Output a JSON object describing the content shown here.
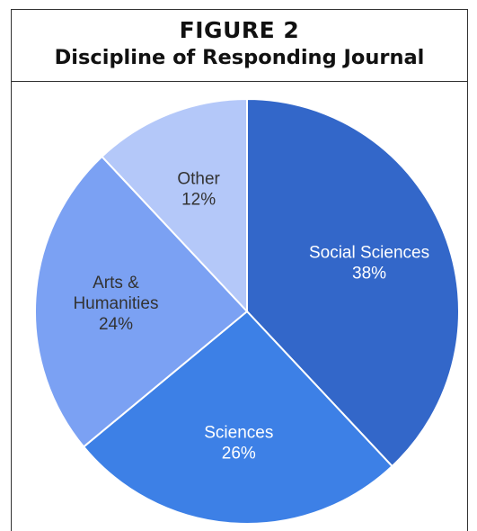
{
  "figure": {
    "label": "FIGURE 2",
    "title": "Discipline of Responding Journal"
  },
  "chart_data": {
    "type": "pie",
    "start_angle_deg": 0,
    "direction": "clockwise",
    "slices": [
      {
        "label_lines": [
          "Social Sciences"
        ],
        "value": 38,
        "value_text": "38%",
        "color": "#3367c9",
        "text_color": "#ffffff"
      },
      {
        "label_lines": [
          "Sciences"
        ],
        "value": 26,
        "value_text": "26%",
        "color": "#3d80e6",
        "text_color": "#ffffff"
      },
      {
        "label_lines": [
          "Arts &",
          "Humanities"
        ],
        "value": 24,
        "value_text": "24%",
        "color": "#7ba1f3",
        "text_color": "#333333"
      },
      {
        "label_lines": [
          "Other"
        ],
        "value": 12,
        "value_text": "12%",
        "color": "#b4c8f9",
        "text_color": "#333333"
      }
    ]
  }
}
